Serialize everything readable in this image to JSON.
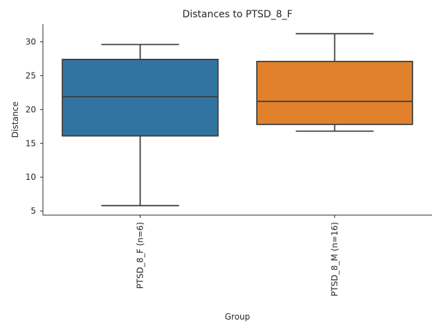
{
  "chart_data": {
    "type": "box",
    "title": "Distances to PTSD_8_F",
    "xlabel": "Group",
    "ylabel": "Distance",
    "ylim": [
      4.4,
      32.6
    ],
    "yticks": [
      5,
      10,
      15,
      20,
      25,
      30
    ],
    "categories": [
      "PTSD_8_F (n=6)",
      "PTSD_8_M (n=16)"
    ],
    "boxes": [
      {
        "category": "PTSD_8_F (n=6)",
        "whisker_low": 5.8,
        "q1": 16.1,
        "median": 21.9,
        "q3": 27.4,
        "whisker_high": 29.6,
        "color": "#3274a1"
      },
      {
        "category": "PTSD_8_M (n=16)",
        "whisker_low": 16.8,
        "q1": 17.8,
        "median": 21.2,
        "q3": 27.1,
        "whisker_high": 31.2,
        "color": "#e1812c"
      }
    ],
    "grid": false,
    "legend": "none"
  }
}
